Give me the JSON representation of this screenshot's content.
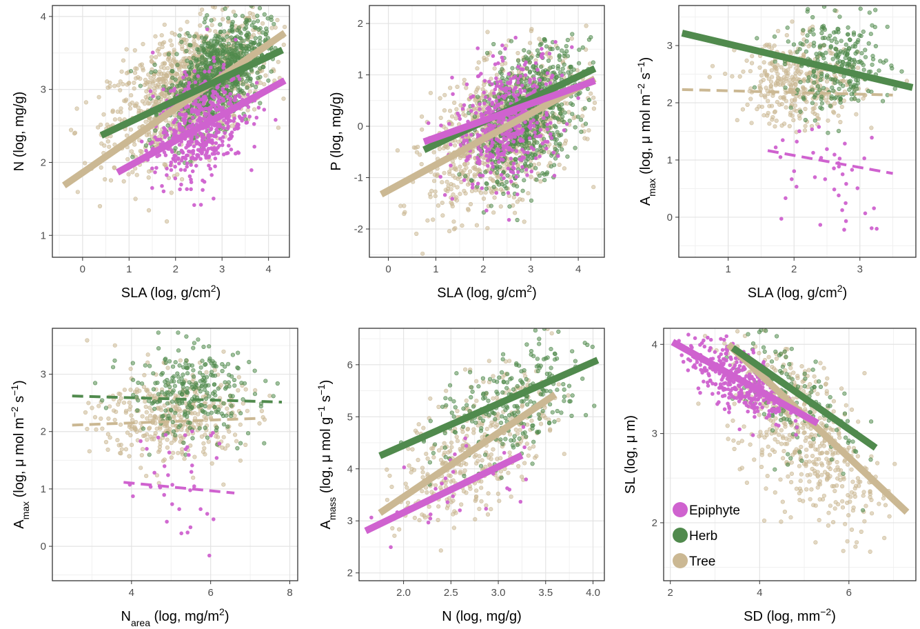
{
  "colors": {
    "Epiphyte": "#cf62cf",
    "Herb": "#508a4d",
    "Tree": "#cbb893"
  },
  "legend": {
    "position": "bottom-left of panel 6",
    "items": [
      {
        "label": "Epiphyte",
        "color": "#cf62cf"
      },
      {
        "label": "Herb",
        "color": "#508a4d"
      },
      {
        "label": "Tree",
        "color": "#cbb893"
      }
    ]
  },
  "chart_data": [
    {
      "type": "scatter",
      "xlabel": "SLA (log, g/cm2)",
      "xlabel_parts": [
        {
          "t": "SLA (log, g/cm"
        },
        {
          "t": "2",
          "sup": true
        },
        {
          "t": ")"
        }
      ],
      "ylabel": "N (log, mg/g)",
      "ylabel_parts": [
        {
          "t": "N (log, mg/g)"
        }
      ],
      "xlim": [
        -0.65,
        4.45
      ],
      "ylim": [
        0.7,
        4.15
      ],
      "xticks": [
        0,
        1,
        2,
        3,
        4
      ],
      "yticks": [
        1,
        2,
        3,
        4
      ],
      "grid": true,
      "series": [
        {
          "name": "Tree",
          "cx": 2.3,
          "cy": 3.0,
          "sx": 0.85,
          "sy": 0.48,
          "r": 0.5,
          "xr": [
            -0.4,
            4.4
          ],
          "n": 1100,
          "slope": 0.44,
          "intercept": 1.86,
          "line_x": [
            -0.4,
            4.35
          ],
          "dashed": false
        },
        {
          "name": "Herb",
          "cx": 2.9,
          "cy": 3.2,
          "sx": 0.55,
          "sy": 0.38,
          "r": 0.5,
          "xr": [
            0.5,
            4.2
          ],
          "n": 900,
          "slope": 0.3,
          "intercept": 2.25,
          "line_x": [
            0.4,
            4.3
          ],
          "dashed": false
        },
        {
          "name": "Epiphyte",
          "cx": 2.5,
          "cy": 2.5,
          "sx": 0.5,
          "sy": 0.38,
          "r": 0.35,
          "xr": [
            0.8,
            4.3
          ],
          "n": 550,
          "slope": 0.35,
          "intercept": 1.6,
          "line_x": [
            0.75,
            4.35
          ],
          "dashed": false
        }
      ]
    },
    {
      "type": "scatter",
      "xlabel": "SLA (log, g/cm2)",
      "xlabel_parts": [
        {
          "t": "SLA (log, g/cm"
        },
        {
          "t": "2",
          "sup": true
        },
        {
          "t": ")"
        }
      ],
      "ylabel": "P (log, mg/g)",
      "ylabel_parts": [
        {
          "t": "P (log, mg/g)"
        }
      ],
      "xlim": [
        -0.4,
        4.55
      ],
      "ylim": [
        -2.55,
        2.35
      ],
      "xticks": [
        0,
        1,
        2,
        3,
        4
      ],
      "yticks": [
        -2,
        -1,
        0,
        1,
        2
      ],
      "grid": true,
      "series": [
        {
          "name": "Tree",
          "cx": 2.4,
          "cy": -0.1,
          "sx": 0.75,
          "sy": 0.7,
          "r": 0.45,
          "xr": [
            -0.2,
            4.4
          ],
          "n": 1000,
          "slope": 0.5,
          "intercept": -1.25,
          "line_x": [
            -0.15,
            4.35
          ],
          "dashed": false
        },
        {
          "name": "Herb",
          "cx": 2.9,
          "cy": 0.2,
          "sx": 0.55,
          "sy": 0.65,
          "r": 0.45,
          "xr": [
            0.8,
            4.4
          ],
          "n": 750,
          "slope": 0.44,
          "intercept": -0.79,
          "line_x": [
            0.75,
            4.35
          ],
          "dashed": false
        },
        {
          "name": "Epiphyte",
          "cx": 2.5,
          "cy": 0.1,
          "sx": 0.55,
          "sy": 0.6,
          "r": 0.3,
          "xr": [
            0.8,
            4.3
          ],
          "n": 450,
          "slope": 0.33,
          "intercept": -0.55,
          "line_x": [
            0.75,
            4.35
          ],
          "dashed": false
        }
      ]
    },
    {
      "type": "scatter",
      "xlabel": "SLA (log, g/cm2)",
      "xlabel_parts": [
        {
          "t": "SLA (log, g/cm"
        },
        {
          "t": "2",
          "sup": true
        },
        {
          "t": ")"
        }
      ],
      "ylabel": "Amax (log, μ mol m-2 s-1)",
      "ylabel_parts": [
        {
          "t": "A"
        },
        {
          "t": "max",
          "sub": true
        },
        {
          "t": " (log, μ mol m"
        },
        {
          "t": "−2",
          "sup": true
        },
        {
          "t": " s"
        },
        {
          "t": "−1",
          "sup": true
        },
        {
          "t": ")"
        }
      ],
      "xlim": [
        0.25,
        3.85
      ],
      "ylim": [
        -0.7,
        3.7
      ],
      "xticks": [
        1,
        2,
        3
      ],
      "yticks": [
        0,
        1,
        2,
        3
      ],
      "grid": true,
      "series": [
        {
          "name": "Tree",
          "cx": 2.1,
          "cy": 2.35,
          "sx": 0.45,
          "sy": 0.38,
          "r": 0.0,
          "xr": [
            0.3,
            3.8
          ],
          "n": 380,
          "slope": -0.03,
          "intercept": 2.24,
          "line_x": [
            0.3,
            3.5
          ],
          "dashed": true
        },
        {
          "name": "Herb",
          "cx": 2.65,
          "cy": 2.65,
          "sx": 0.4,
          "sy": 0.4,
          "r": 0.0,
          "xr": [
            0.3,
            3.8
          ],
          "n": 260,
          "slope": -0.272,
          "intercept": 3.3,
          "line_x": [
            0.3,
            3.8
          ],
          "dashed": false
        },
        {
          "name": "Epiphyte",
          "cx": 2.55,
          "cy": 0.9,
          "sx": 0.55,
          "sy": 0.55,
          "r": 0.0,
          "xr": [
            1.5,
            3.6
          ],
          "n": 45,
          "slope": -0.21,
          "intercept": 1.5,
          "line_x": [
            1.6,
            3.5
          ],
          "dashed": true
        }
      ]
    },
    {
      "type": "scatter",
      "xlabel": "Narea (log, mg/m2)",
      "xlabel_parts": [
        {
          "t": "N"
        },
        {
          "t": "area",
          "sub": true
        },
        {
          "t": " (log, mg/m"
        },
        {
          "t": "2",
          "sup": true
        },
        {
          "t": ")"
        }
      ],
      "ylabel": "Amax (log, μ mol m-2 s-1)",
      "ylabel_parts": [
        {
          "t": "A"
        },
        {
          "t": "max",
          "sub": true
        },
        {
          "t": " (log, μ mol m"
        },
        {
          "t": "−2",
          "sup": true
        },
        {
          "t": " s"
        },
        {
          "t": "−1",
          "sup": true
        },
        {
          "t": ")"
        }
      ],
      "xlim": [
        2.0,
        8.2
      ],
      "ylim": [
        -0.6,
        3.8
      ],
      "xticks": [
        4,
        6,
        8
      ],
      "yticks": [
        0,
        1,
        2,
        3
      ],
      "grid": true,
      "series": [
        {
          "name": "Tree",
          "cx": 5.0,
          "cy": 2.25,
          "sx": 0.9,
          "sy": 0.42,
          "r": 0.0,
          "xr": [
            2.3,
            7.8
          ],
          "n": 380,
          "slope": 0.025,
          "intercept": 2.05,
          "line_x": [
            2.5,
            7.2
          ],
          "dashed": true
        },
        {
          "name": "Herb",
          "cx": 5.5,
          "cy": 2.7,
          "sx": 0.8,
          "sy": 0.4,
          "r": 0.0,
          "xr": [
            2.3,
            7.8
          ],
          "n": 260,
          "slope": -0.02,
          "intercept": 2.67,
          "line_x": [
            2.5,
            7.8
          ],
          "dashed": true
        },
        {
          "name": "Epiphyte",
          "cx": 5.0,
          "cy": 1.0,
          "sx": 0.9,
          "sy": 0.55,
          "r": 0.0,
          "xr": [
            3.6,
            6.6
          ],
          "n": 40,
          "slope": -0.067,
          "intercept": 1.37,
          "line_x": [
            3.8,
            6.6
          ],
          "dashed": true
        }
      ]
    },
    {
      "type": "scatter",
      "xlabel": "N (log, mg/g)",
      "xlabel_parts": [
        {
          "t": "N (log, mg/g)"
        }
      ],
      "ylabel": "Amass (log, μ mol g-1 s-1)",
      "ylabel_parts": [
        {
          "t": "A"
        },
        {
          "t": "mass",
          "sub": true
        },
        {
          "t": " (log, μ mol g"
        },
        {
          "t": "−1",
          "sup": true
        },
        {
          "t": " s"
        },
        {
          "t": "−1",
          "sup": true
        },
        {
          "t": ")"
        }
      ],
      "xlim": [
        1.53,
        4.12
      ],
      "ylim": [
        1.85,
        6.7
      ],
      "xticks": [
        2.0,
        2.5,
        3.0,
        3.5,
        4.0
      ],
      "yticks": [
        2,
        3,
        4,
        5,
        6
      ],
      "xtick_labels": [
        "2.0",
        "2.5",
        "3.0",
        "3.5",
        "4.0"
      ],
      "grid": true,
      "series": [
        {
          "name": "Tree",
          "cx": 2.75,
          "cy": 4.4,
          "sx": 0.4,
          "sy": 0.75,
          "r": 0.55,
          "xr": [
            1.8,
            4.0
          ],
          "n": 380,
          "slope": 1.23,
          "intercept": 1.0,
          "line_x": [
            1.75,
            3.6
          ],
          "dashed": false
        },
        {
          "name": "Herb",
          "cx": 3.15,
          "cy": 5.2,
          "sx": 0.4,
          "sy": 0.6,
          "r": 0.45,
          "xr": [
            1.8,
            4.1
          ],
          "n": 260,
          "slope": 0.8,
          "intercept": 2.85,
          "line_x": [
            1.75,
            4.05
          ],
          "dashed": false
        },
        {
          "name": "Epiphyte",
          "cx": 2.6,
          "cy": 3.6,
          "sx": 0.5,
          "sy": 0.5,
          "r": 0.3,
          "xr": [
            1.6,
            3.3
          ],
          "n": 40,
          "slope": 0.88,
          "intercept": 1.4,
          "line_x": [
            1.6,
            3.25
          ],
          "dashed": false
        }
      ]
    },
    {
      "type": "scatter",
      "xlabel": "SD (log, mm-2)",
      "xlabel_parts": [
        {
          "t": "SD (log, mm"
        },
        {
          "t": "−2",
          "sup": true
        },
        {
          "t": ")"
        }
      ],
      "ylabel": "SL (log, μ m)",
      "ylabel_parts": [
        {
          "t": "SL (log, μ m)"
        }
      ],
      "xlim": [
        1.85,
        7.5
      ],
      "ylim": [
        1.35,
        4.18
      ],
      "xticks": [
        2,
        4,
        6
      ],
      "yticks": [
        2,
        3,
        4
      ],
      "grid": true,
      "series": [
        {
          "name": "Tree",
          "cx": 5.0,
          "cy": 3.0,
          "sx": 0.85,
          "sy": 0.55,
          "r": -0.6,
          "xr": [
            2.5,
            7.2
          ],
          "n": 500,
          "slope": -0.47,
          "intercept": 5.55,
          "line_x": [
            3.3,
            7.3
          ],
          "dashed": false
        },
        {
          "name": "Herb",
          "cx": 4.5,
          "cy": 3.5,
          "sx": 0.8,
          "sy": 0.4,
          "r": -0.6,
          "xr": [
            3.2,
            6.6
          ],
          "n": 150,
          "slope": -0.35,
          "intercept": 5.15,
          "line_x": [
            3.4,
            6.6
          ],
          "dashed": false
        },
        {
          "name": "Epiphyte",
          "cx": 3.5,
          "cy": 3.6,
          "sx": 0.55,
          "sy": 0.22,
          "r": -0.6,
          "xr": [
            2.0,
            5.3
          ],
          "n": 350,
          "slope": -0.28,
          "intercept": 4.6,
          "line_x": [
            2.05,
            5.3
          ],
          "dashed": false
        }
      ]
    }
  ]
}
